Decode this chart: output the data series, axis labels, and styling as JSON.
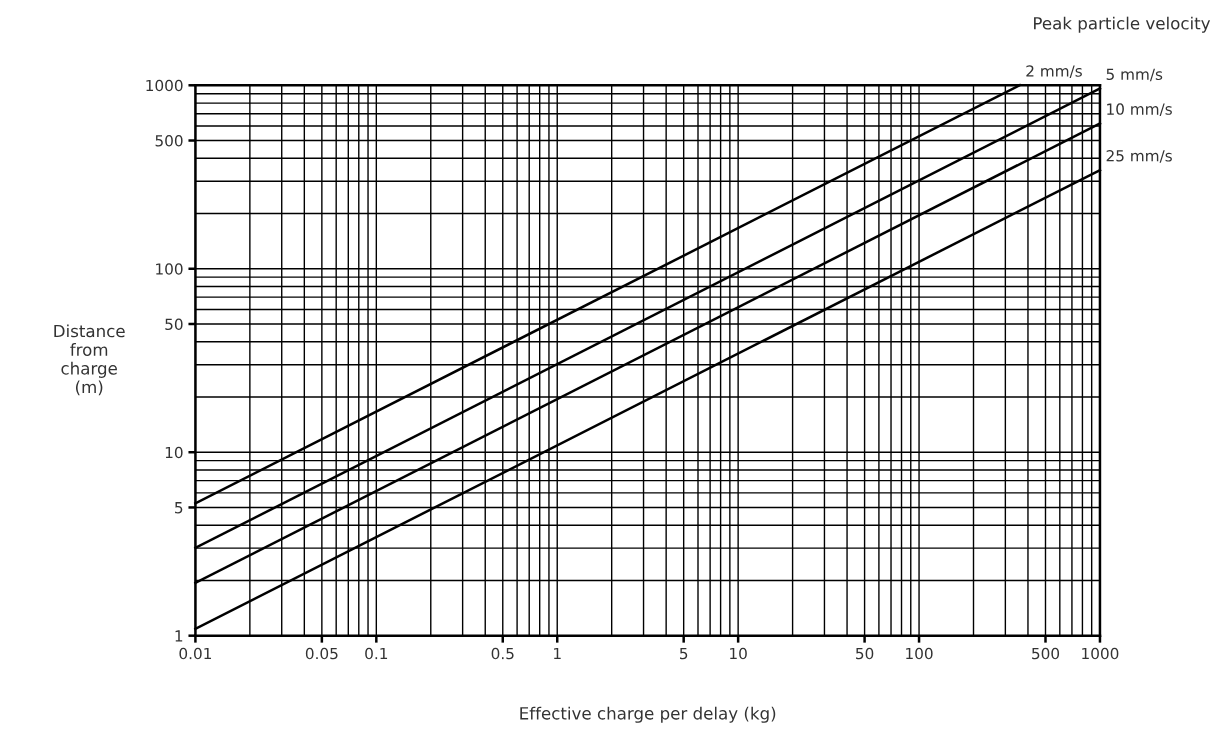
{
  "chart_data": {
    "type": "line",
    "xlabel": "Effective charge per delay (kg)",
    "ylabel": "Distance\nfrom\ncharge\n(m)",
    "annotations": [
      "Peak particle velocity"
    ],
    "log": "xy",
    "grid": true,
    "legend": false,
    "marker": "none",
    "line_style": "solid",
    "xlim": [
      0.01,
      1000
    ],
    "ylim": [
      1,
      1000
    ],
    "xticks": [
      0.01,
      0.05,
      0.1,
      0.5,
      1,
      5,
      10,
      50,
      100,
      500,
      1000
    ],
    "yticks": [
      1,
      5,
      10,
      50,
      100,
      500,
      1000
    ],
    "series": [
      {
        "name": "2 mm/s",
        "color": "#000000",
        "x": [
          0.01,
          360
        ],
        "values": [
          5.27,
          1000
        ]
      },
      {
        "name": "5 mm/s",
        "color": "#000000",
        "x": [
          0.01,
          1000
        ],
        "values": [
          3.01,
          960
        ]
      },
      {
        "name": "10 mm/s",
        "color": "#000000",
        "x": [
          0.01,
          1000
        ],
        "values": [
          1.94,
          620
        ]
      },
      {
        "name": "25 mm/s",
        "color": "#000000",
        "x": [
          0.01,
          1000
        ],
        "values": [
          1.09,
          345
        ]
      }
    ]
  }
}
